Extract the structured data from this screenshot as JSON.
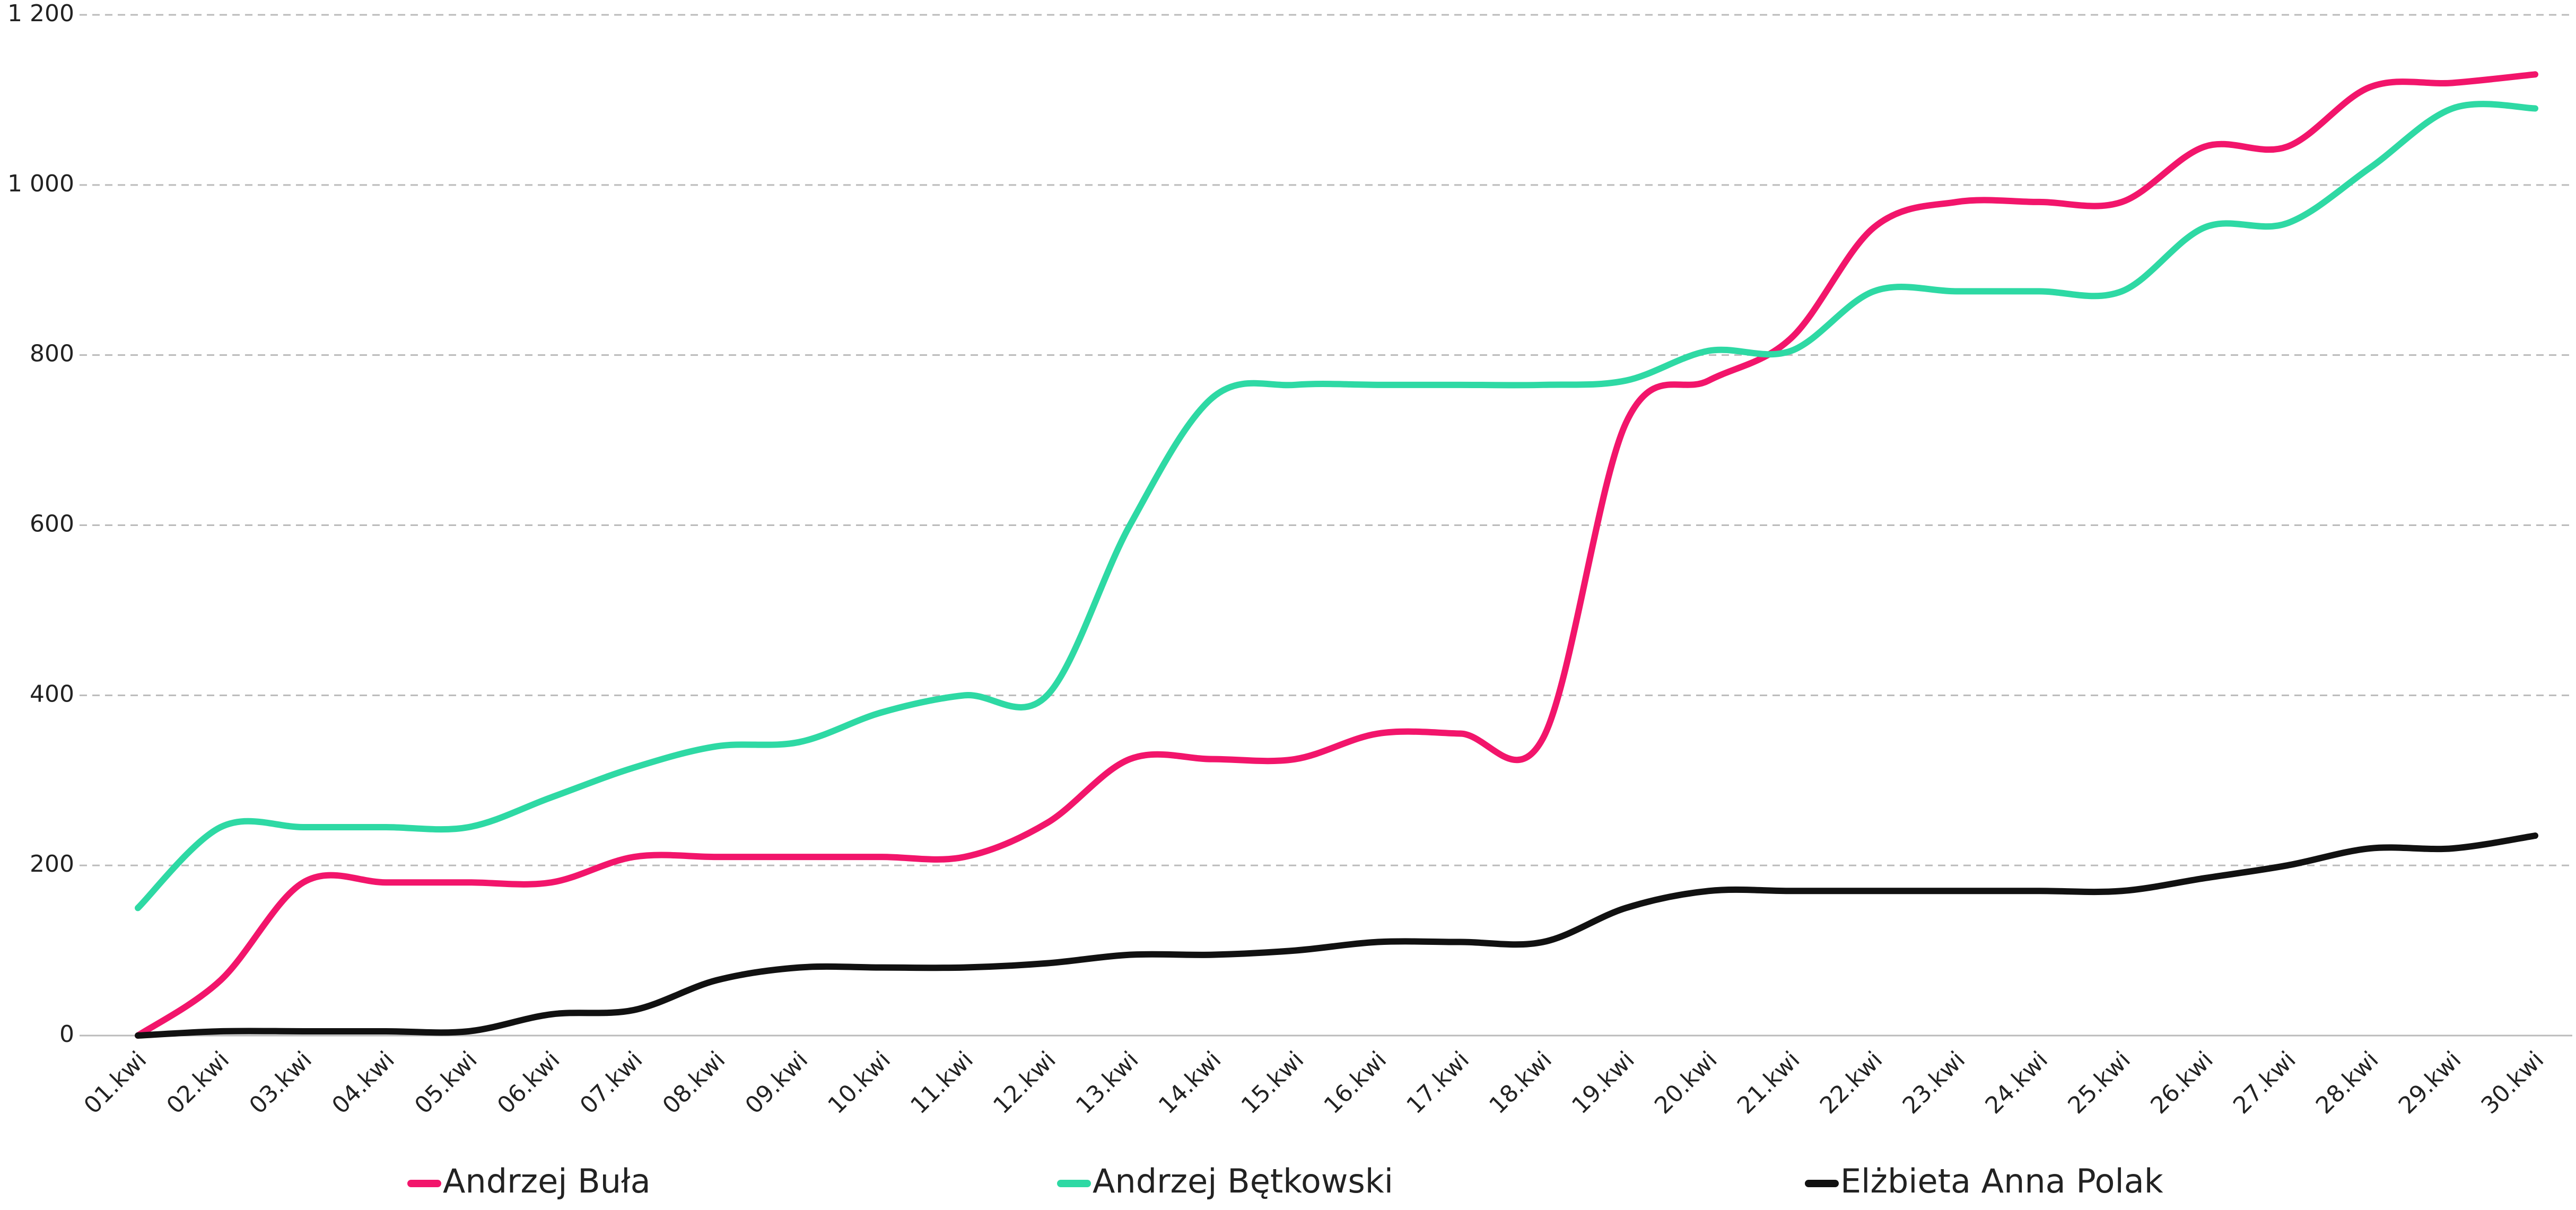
{
  "chart_data": {
    "type": "line",
    "categories": [
      "01.kwi",
      "02.kwi",
      "03.kwi",
      "04.kwi",
      "05.kwi",
      "06.kwi",
      "07.kwi",
      "08.kwi",
      "09.kwi",
      "10.kwi",
      "11.kwi",
      "12.kwi",
      "13.kwi",
      "14.kwi",
      "15.kwi",
      "16.kwi",
      "17.kwi",
      "18.kwi",
      "19.kwi",
      "20.kwi",
      "21.kwi",
      "22.kwi",
      "23.kwi",
      "24.kwi",
      "25.kwi",
      "26.kwi",
      "27.kwi",
      "28.kwi",
      "29.kwi",
      "30.kwi"
    ],
    "series": [
      {
        "name": "Andrzej Buła",
        "color": "#f2156b",
        "values": [
          0,
          65,
          180,
          180,
          180,
          180,
          210,
          210,
          210,
          210,
          210,
          250,
          325,
          325,
          325,
          355,
          355,
          350,
          720,
          770,
          820,
          950,
          980,
          980,
          980,
          1045,
          1045,
          1115,
          1120,
          1130
        ]
      },
      {
        "name": "Andrzej Bętkowski",
        "color": "#2ed9a4",
        "values": [
          150,
          245,
          245,
          245,
          245,
          280,
          315,
          340,
          345,
          380,
          400,
          400,
          600,
          750,
          765,
          765,
          765,
          765,
          770,
          805,
          805,
          875,
          875,
          875,
          875,
          950,
          955,
          1020,
          1090,
          1090
        ]
      },
      {
        "name": "Elżbieta Anna Polak",
        "color": "#111111",
        "values": [
          0,
          5,
          5,
          5,
          5,
          25,
          30,
          65,
          80,
          80,
          80,
          85,
          95,
          95,
          100,
          110,
          110,
          110,
          150,
          170,
          170,
          170,
          170,
          170,
          170,
          185,
          200,
          220,
          220,
          235
        ]
      }
    ],
    "ylim": [
      0,
      1200
    ],
    "yticks": [
      0,
      200,
      400,
      600,
      800,
      {
        "value": 1000,
        "label": "1 000"
      },
      {
        "value": 1200,
        "label": "1 200"
      }
    ],
    "grid": true,
    "legend": "bottom"
  }
}
